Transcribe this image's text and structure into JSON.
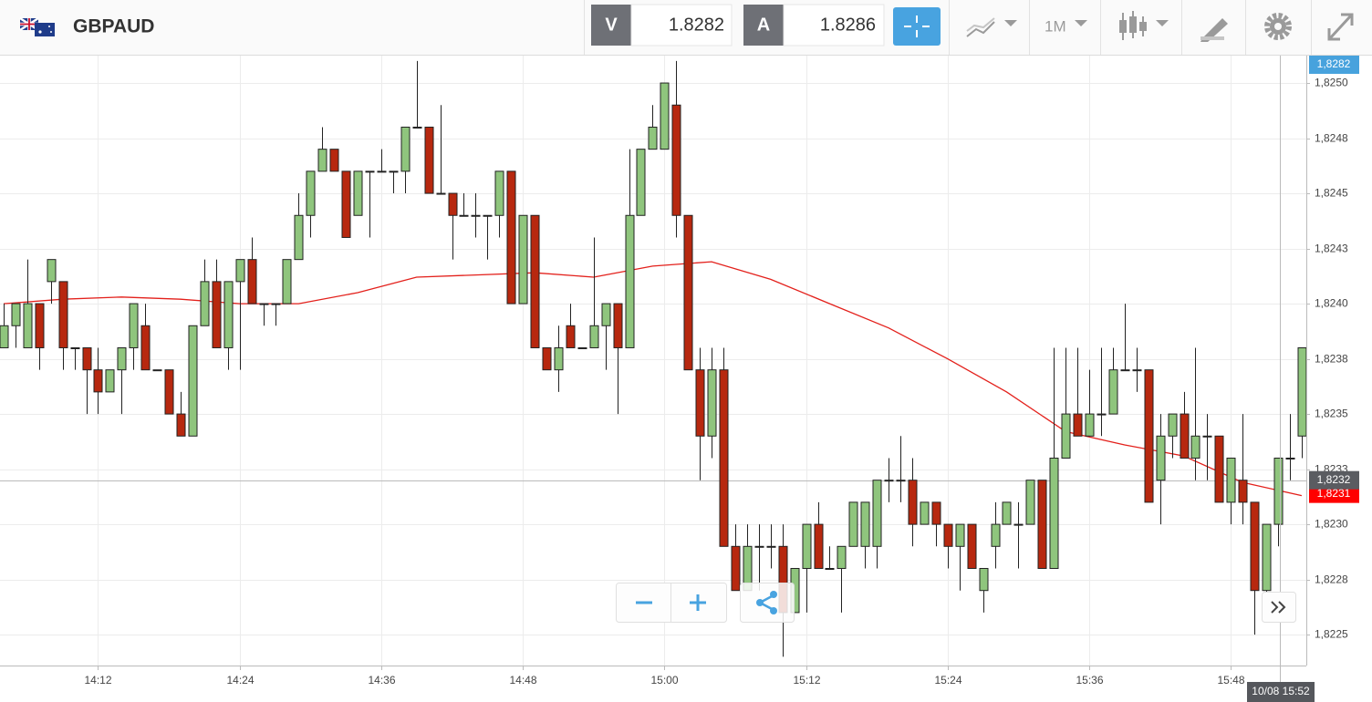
{
  "header": {
    "symbol": "GBPAUD",
    "bid": {
      "label": "V",
      "value": 1.8282
    },
    "ask": {
      "label": "A",
      "value": 1.8286
    },
    "timeframe": "1M"
  },
  "crosshair": {
    "time_label": "10/08 15:52",
    "price": {
      "value": 1.8232,
      "label": "1,8232"
    }
  },
  "current_price_tag": {
    "value": 1.8282,
    "label": "1,8282"
  },
  "chart_data": {
    "type": "candlestick",
    "categories": [
      "14:04",
      "14:05",
      "14:06",
      "14:07",
      "14:08",
      "14:09",
      "14:10",
      "14:11",
      "14:12",
      "14:13",
      "14:14",
      "14:15",
      "14:16",
      "14:17",
      "14:18",
      "14:19",
      "14:20",
      "14:21",
      "14:22",
      "14:23",
      "14:24",
      "14:25",
      "14:26",
      "14:27",
      "14:28",
      "14:29",
      "14:30",
      "14:31",
      "14:32",
      "14:33",
      "14:34",
      "14:35",
      "14:36",
      "14:37",
      "14:38",
      "14:39",
      "14:40",
      "14:41",
      "14:42",
      "14:43",
      "14:44",
      "14:45",
      "14:46",
      "14:47",
      "14:48",
      "14:49",
      "14:50",
      "14:51",
      "14:52",
      "14:53",
      "14:54",
      "14:55",
      "14:56",
      "14:57",
      "14:58",
      "14:59",
      "15:00",
      "15:01",
      "15:02",
      "15:03",
      "15:04",
      "15:05",
      "15:06",
      "15:07",
      "15:08",
      "15:09",
      "15:10",
      "15:11",
      "15:12",
      "15:13",
      "15:14",
      "15:15",
      "15:16",
      "15:17",
      "15:18",
      "15:19",
      "15:20",
      "15:21",
      "15:22",
      "15:23",
      "15:24",
      "15:25",
      "15:26",
      "15:27",
      "15:28",
      "15:29",
      "15:30",
      "15:31",
      "15:32",
      "15:33",
      "15:34",
      "15:35",
      "15:36",
      "15:37",
      "15:38",
      "15:39",
      "15:40",
      "15:41",
      "15:42",
      "15:43",
      "15:44",
      "15:45",
      "15:46",
      "15:47",
      "15:48",
      "15:49",
      "15:50",
      "15:51",
      "15:52",
      "15:53",
      "15:54"
    ],
    "open": [
      1.8238,
      1.8239,
      1.8238,
      1.824,
      1.8241,
      1.8241,
      1.8238,
      1.8238,
      1.8237,
      1.8236,
      1.8237,
      1.8238,
      1.8239,
      1.8237,
      1.8237,
      1.8235,
      1.8234,
      1.8239,
      1.8241,
      1.8238,
      1.8241,
      1.8242,
      1.824,
      1.824,
      1.824,
      1.8242,
      1.8244,
      1.8246,
      1.8247,
      1.8246,
      1.8244,
      1.8246,
      1.8246,
      1.8246,
      1.8246,
      1.8248,
      1.8248,
      1.8245,
      1.8245,
      1.8244,
      1.8244,
      1.8244,
      1.8244,
      1.8246,
      1.824,
      1.8244,
      1.8238,
      1.8237,
      1.8239,
      1.8238,
      1.8238,
      1.8239,
      1.824,
      1.8238,
      1.8244,
      1.8247,
      1.8247,
      1.8249,
      1.8244,
      1.8237,
      1.8234,
      1.8237,
      1.8229,
      1.8227,
      1.8229,
      1.8229,
      1.8229,
      1.8226,
      1.8228,
      1.823,
      1.8228,
      1.8228,
      1.8229,
      1.8229,
      1.8229,
      1.8232,
      1.8232,
      1.8232,
      1.823,
      1.8231,
      1.823,
      1.8229,
      1.823,
      1.8227,
      1.8229,
      1.823,
      1.823,
      1.823,
      1.8232,
      1.8228,
      1.8233,
      1.8235,
      1.8234,
      1.8235,
      1.8235,
      1.8237,
      1.8237,
      1.8237,
      1.8232,
      1.8234,
      1.8235,
      1.8233,
      1.8234,
      1.8234,
      1.8231,
      1.8232,
      1.8231,
      1.8227,
      1.823,
      1.8233,
      1.8234
    ],
    "high": [
      1.824,
      1.824,
      1.8242,
      1.824,
      1.8242,
      1.8241,
      1.8238,
      1.8238,
      1.8238,
      1.8237,
      1.8238,
      1.824,
      1.824,
      1.8237,
      1.8237,
      1.8236,
      1.8239,
      1.8242,
      1.8242,
      1.8241,
      1.8242,
      1.8243,
      1.824,
      1.824,
      1.8242,
      1.8245,
      1.8246,
      1.8248,
      1.8247,
      1.8246,
      1.8246,
      1.8246,
      1.8247,
      1.8246,
      1.8248,
      1.8251,
      1.8248,
      1.8249,
      1.8245,
      1.8245,
      1.8245,
      1.8244,
      1.8246,
      1.8246,
      1.8244,
      1.8244,
      1.8238,
      1.8239,
      1.824,
      1.8238,
      1.8243,
      1.824,
      1.824,
      1.8247,
      1.8247,
      1.8249,
      1.825,
      1.8251,
      1.8244,
      1.8238,
      1.8238,
      1.8238,
      1.823,
      1.823,
      1.823,
      1.823,
      1.823,
      1.8228,
      1.823,
      1.8231,
      1.8229,
      1.8229,
      1.8231,
      1.8231,
      1.8232,
      1.8233,
      1.8234,
      1.8233,
      1.8231,
      1.8231,
      1.823,
      1.823,
      1.823,
      1.8228,
      1.8231,
      1.8231,
      1.8231,
      1.8232,
      1.8232,
      1.8238,
      1.8238,
      1.8238,
      1.8237,
      1.8238,
      1.8238,
      1.824,
      1.8238,
      1.8237,
      1.8235,
      1.8235,
      1.8236,
      1.8238,
      1.8235,
      1.8234,
      1.8233,
      1.8235,
      1.8231,
      1.823,
      1.8233,
      1.8235,
      1.8238
    ],
    "low": [
      1.8238,
      1.8238,
      1.8238,
      1.8237,
      1.824,
      1.8237,
      1.8237,
      1.8235,
      1.8235,
      1.8236,
      1.8235,
      1.8237,
      1.8237,
      1.8237,
      1.8235,
      1.8234,
      1.8234,
      1.8239,
      1.8238,
      1.8237,
      1.8237,
      1.824,
      1.8239,
      1.8239,
      1.824,
      1.8242,
      1.8243,
      1.8246,
      1.8246,
      1.8243,
      1.8244,
      1.8243,
      1.8246,
      1.8245,
      1.8245,
      1.8248,
      1.8245,
      1.8245,
      1.8242,
      1.8244,
      1.8243,
      1.8242,
      1.8243,
      1.824,
      1.824,
      1.8238,
      1.8237,
      1.8236,
      1.8238,
      1.8238,
      1.8238,
      1.8237,
      1.8235,
      1.8238,
      1.8244,
      1.8247,
      1.8247,
      1.8243,
      1.8237,
      1.8232,
      1.8233,
      1.8229,
      1.8227,
      1.8227,
      1.8227,
      1.8228,
      1.8224,
      1.8226,
      1.8226,
      1.8228,
      1.8228,
      1.8226,
      1.8229,
      1.8228,
      1.8228,
      1.8231,
      1.8231,
      1.8229,
      1.823,
      1.8229,
      1.8228,
      1.8227,
      1.8228,
      1.8226,
      1.8228,
      1.823,
      1.8228,
      1.823,
      1.8228,
      1.8228,
      1.8233,
      1.8234,
      1.8234,
      1.8234,
      1.8235,
      1.8237,
      1.8236,
      1.8231,
      1.823,
      1.8233,
      1.8233,
      1.8232,
      1.8232,
      1.8231,
      1.823,
      1.823,
      1.8225,
      1.8226,
      1.8229,
      1.8232,
      1.8233
    ],
    "close": [
      1.8239,
      1.824,
      1.824,
      1.8238,
      1.8242,
      1.8238,
      1.8238,
      1.8237,
      1.8236,
      1.8237,
      1.8238,
      1.824,
      1.8237,
      1.8237,
      1.8235,
      1.8234,
      1.8239,
      1.8241,
      1.8238,
      1.8241,
      1.8242,
      1.824,
      1.824,
      1.824,
      1.8242,
      1.8244,
      1.8246,
      1.8247,
      1.8246,
      1.8243,
      1.8246,
      1.8246,
      1.8246,
      1.8246,
      1.8248,
      1.8248,
      1.8245,
      1.8245,
      1.8244,
      1.8244,
      1.8244,
      1.8244,
      1.8246,
      1.824,
      1.8244,
      1.8238,
      1.8237,
      1.8238,
      1.8238,
      1.8238,
      1.8239,
      1.824,
      1.8238,
      1.8244,
      1.8247,
      1.8248,
      1.825,
      1.8244,
      1.8237,
      1.8234,
      1.8237,
      1.8229,
      1.8227,
      1.8229,
      1.8229,
      1.8229,
      1.8226,
      1.8228,
      1.823,
      1.8228,
      1.8228,
      1.8229,
      1.8231,
      1.8231,
      1.8232,
      1.8232,
      1.8232,
      1.823,
      1.8231,
      1.823,
      1.8229,
      1.823,
      1.8228,
      1.8228,
      1.823,
      1.8231,
      1.823,
      1.8232,
      1.8228,
      1.8233,
      1.8235,
      1.8234,
      1.8235,
      1.8235,
      1.8237,
      1.8237,
      1.8237,
      1.8231,
      1.8234,
      1.8235,
      1.8233,
      1.8234,
      1.8234,
      1.8231,
      1.8233,
      1.8231,
      1.8227,
      1.823,
      1.8233,
      1.8233,
      1.8238
    ],
    "up_color": "#8fc57d",
    "down_color": "#b7280f",
    "moving_average": {
      "color": "#e3201b",
      "x": [
        "14:04",
        "14:09",
        "14:14",
        "14:19",
        "14:24",
        "14:29",
        "14:34",
        "14:39",
        "14:44",
        "14:49",
        "14:54",
        "14:59",
        "15:04",
        "15:09",
        "15:14",
        "15:19",
        "15:24",
        "15:29",
        "15:34",
        "15:39",
        "15:44",
        "15:49",
        "15:54"
      ],
      "values": [
        1.824,
        1.82402,
        1.82403,
        1.82402,
        1.824,
        1.824,
        1.82405,
        1.82412,
        1.82413,
        1.82414,
        1.82412,
        1.82417,
        1.82419,
        1.82411,
        1.824,
        1.82389,
        1.82375,
        1.8236,
        1.82342,
        1.82336,
        1.82331,
        1.82319,
        1.82313
      ],
      "last_label": {
        "value": 1.82313,
        "label": "1,8231"
      }
    },
    "ylim": [
      1.82236,
      1.82512
    ],
    "yticks": [
      {
        "value": 1.8225,
        "label": "1,8225"
      },
      {
        "value": 1.82275,
        "label": "1,8228"
      },
      {
        "value": 1.823,
        "label": "1,8230"
      },
      {
        "value": 1.82325,
        "label": "1,8233"
      },
      {
        "value": 1.8235,
        "label": "1,8235"
      },
      {
        "value": 1.82375,
        "label": "1,8238"
      },
      {
        "value": 1.824,
        "label": "1,8240"
      },
      {
        "value": 1.82425,
        "label": "1,8243"
      },
      {
        "value": 1.8245,
        "label": "1,8245"
      },
      {
        "value": 1.82475,
        "label": "1,8248"
      },
      {
        "value": 1.825,
        "label": "1,8250"
      }
    ],
    "xticks": [
      "14:12",
      "14:24",
      "14:36",
      "14:48",
      "15:00",
      "15:12",
      "15:24",
      "15:36",
      "15:48"
    ],
    "grid": true
  }
}
